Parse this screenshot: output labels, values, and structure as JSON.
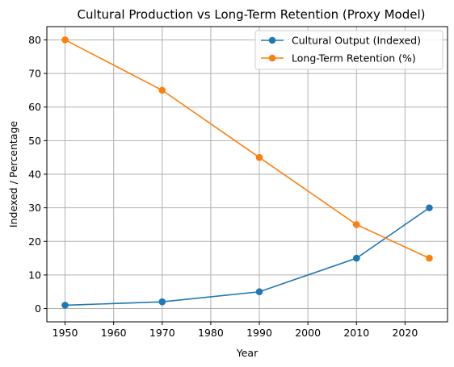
{
  "chart_data": {
    "type": "line",
    "title": "Cultural Production vs Long-Term Retention (Proxy Model)",
    "xlabel": "Year",
    "ylabel": "Indexed / Percentage",
    "x": [
      1950,
      1970,
      1990,
      2010,
      2025
    ],
    "series": [
      {
        "name": "Cultural Output (Indexed)",
        "values": [
          1,
          2,
          5,
          15,
          30
        ],
        "color": "#1f77b4"
      },
      {
        "name": "Long-Term Retention (%)",
        "values": [
          80,
          65,
          45,
          25,
          15
        ],
        "color": "#ff7f0e"
      }
    ],
    "xticks": [
      1950,
      1960,
      1970,
      1980,
      1990,
      2000,
      2010,
      2020
    ],
    "yticks": [
      0,
      10,
      20,
      30,
      40,
      50,
      60,
      70,
      80
    ],
    "xlim": [
      1946.25,
      2028.75
    ],
    "ylim": [
      -3.95,
      83.95
    ],
    "grid": true,
    "legend_position": "top-right"
  }
}
